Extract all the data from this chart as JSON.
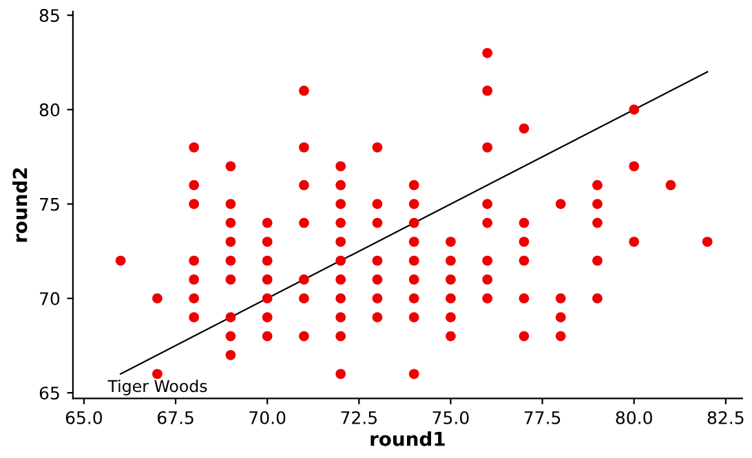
{
  "chart_data": {
    "type": "scatter",
    "xlabel": "round1",
    "ylabel": "round2",
    "xlim": [
      64.7,
      82.95
    ],
    "ylim": [
      64.7,
      85.2
    ],
    "xticks": [
      {
        "value": 65,
        "label": "65.0"
      },
      {
        "value": 67.5,
        "label": "67.5"
      },
      {
        "value": 70,
        "label": "70.0"
      },
      {
        "value": 72.5,
        "label": "72.5"
      },
      {
        "value": 75,
        "label": "75.0"
      },
      {
        "value": 77.5,
        "label": "77.5"
      },
      {
        "value": 80,
        "label": "80.0"
      },
      {
        "value": 82.5,
        "label": "82.5"
      }
    ],
    "yticks": [
      65,
      70,
      75,
      80,
      85
    ],
    "grid": false,
    "legend": false,
    "marker": "circle",
    "series": [
      {
        "color": "#ee0000",
        "x": [
          66,
          67,
          67,
          68,
          68,
          68,
          68,
          68,
          68,
          68,
          69,
          69,
          69,
          69,
          69,
          69,
          69,
          69,
          69,
          70,
          70,
          70,
          70,
          70,
          70,
          70,
          71,
          71,
          71,
          71,
          71,
          71,
          71,
          72,
          72,
          72,
          72,
          72,
          72,
          72,
          72,
          72,
          72,
          72,
          73,
          73,
          73,
          73,
          73,
          73,
          73,
          74,
          74,
          74,
          74,
          74,
          74,
          74,
          74,
          74,
          75,
          75,
          75,
          75,
          75,
          75,
          76,
          76,
          76,
          76,
          76,
          76,
          76,
          76,
          77,
          77,
          77,
          77,
          77,
          77,
          78,
          78,
          78,
          78,
          79,
          79,
          79,
          79,
          79,
          80,
          80,
          80,
          81,
          82
        ],
        "values": [
          72,
          70,
          66,
          78,
          76,
          75,
          72,
          71,
          70,
          69,
          77,
          75,
          74,
          73,
          72,
          71,
          69,
          68,
          67,
          74,
          73,
          72,
          71,
          70,
          69,
          68,
          81,
          78,
          76,
          74,
          71,
          70,
          68,
          77,
          76,
          75,
          74,
          73,
          72,
          71,
          70,
          69,
          68,
          66,
          78,
          75,
          74,
          72,
          71,
          70,
          69,
          76,
          75,
          74,
          73,
          72,
          71,
          70,
          69,
          66,
          73,
          72,
          71,
          70,
          69,
          68,
          83,
          81,
          78,
          75,
          74,
          72,
          71,
          70,
          79,
          74,
          73,
          72,
          70,
          68,
          75,
          70,
          69,
          68,
          76,
          75,
          74,
          72,
          70,
          80,
          77,
          73,
          76,
          73
        ]
      },
      {
        "type": "line",
        "color": "#000000",
        "marker": "none",
        "x": [
          66,
          82
        ],
        "values": [
          66,
          82
        ]
      }
    ],
    "annotations": [
      "Tiger Woods"
    ]
  }
}
